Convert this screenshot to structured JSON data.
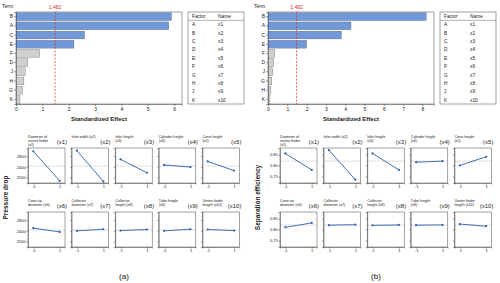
{
  "chart_data": [
    {
      "type": "bar",
      "orientation": "horizontal",
      "x_label": "Standardized Effect",
      "y_label": "Term",
      "categories": [
        "B",
        "A",
        "C",
        "E",
        "F",
        "D",
        "J",
        "H",
        "G",
        "K"
      ],
      "values": [
        5.9,
        5.8,
        2.6,
        2.2,
        0.9,
        0.45,
        0.35,
        0.3,
        0.25,
        0.15
      ],
      "colors": [
        "#7199da",
        "#7199da",
        "#7199da",
        "#7199da",
        "#cfcfcf",
        "#cfcfcf",
        "#cfcfcf",
        "#cfcfcf",
        "#cfcfcf",
        "#cfcfcf"
      ],
      "xlim": [
        0,
        6.3
      ],
      "xticks": [
        0,
        1,
        2,
        3,
        4,
        5,
        6
      ],
      "reference_line": 1.482,
      "factor_table": {
        "header": [
          "Factor",
          "Name"
        ],
        "rows": [
          [
            "A",
            "x1"
          ],
          [
            "B",
            "x2"
          ],
          [
            "C",
            "x3"
          ],
          [
            "D",
            "x4"
          ],
          [
            "E",
            "x5"
          ],
          [
            "F",
            "x6"
          ],
          [
            "G",
            "x7"
          ],
          [
            "H",
            "x8"
          ],
          [
            "J",
            "x9"
          ],
          [
            "K",
            "x10"
          ]
        ]
      }
    },
    {
      "type": "line",
      "y_label": "Pressure drop",
      "caption": "(a)",
      "color": "#2f5fae",
      "marker": "circle",
      "line_style": "solid",
      "xlim": [
        -1.4,
        1.4
      ],
      "xticks": [
        -1,
        1
      ],
      "ylim": [
        1800,
        3100
      ],
      "yticks": [
        2000,
        2400,
        2800
      ],
      "mean": 2430,
      "subplots": [
        {
          "title": "Diameter of vortex finder (x1)",
          "label": "(x1)",
          "x": [
            -1,
            1
          ],
          "values": [
            2980,
            1880
          ]
        },
        {
          "title": "Inlet width (x2)",
          "label": "(x2)",
          "x": [
            -1,
            1
          ],
          "values": [
            3000,
            1860
          ]
        },
        {
          "title": "Inlet height (x3)",
          "label": "(x3)",
          "x": [
            -1,
            1
          ],
          "values": [
            2680,
            2180
          ]
        },
        {
          "title": "Cylinder height (x4)",
          "label": "(x4)",
          "x": [
            -1,
            1
          ],
          "values": [
            2470,
            2390
          ]
        },
        {
          "title": "Cone height (x5)",
          "label": "(x5)",
          "x": [
            -1,
            1
          ],
          "values": [
            2600,
            2260
          ]
        },
        {
          "title": "Cone tip diameter (x6)",
          "label": "(x6)",
          "x": [
            -1,
            1
          ],
          "values": [
            2500,
            2360
          ]
        },
        {
          "title": "Collector diameter (x7)",
          "label": "(x7)",
          "x": [
            -1,
            1
          ],
          "values": [
            2400,
            2460
          ]
        },
        {
          "title": "Collector height (x8)",
          "label": "(x8)",
          "x": [
            -1,
            1
          ],
          "values": [
            2410,
            2450
          ]
        },
        {
          "title": "Tube height (x9)",
          "label": "(x9)",
          "x": [
            -1,
            1
          ],
          "values": [
            2400,
            2460
          ]
        },
        {
          "title": "Vortex finder length (x10)",
          "label": "(x10)",
          "x": [
            -1,
            1
          ],
          "values": [
            2450,
            2410
          ]
        }
      ]
    },
    {
      "type": "bar",
      "orientation": "horizontal",
      "x_label": "Standardized Effect",
      "y_label": "Term",
      "categories": [
        "B",
        "A",
        "C",
        "E",
        "F",
        "D",
        "J",
        "G",
        "H",
        "K"
      ],
      "values": [
        8.2,
        4.3,
        3.8,
        2.0,
        0.35,
        0.3,
        0.25,
        0.2,
        0.15,
        0.1
      ],
      "colors": [
        "#7199da",
        "#7199da",
        "#7199da",
        "#7199da",
        "#cfcfcf",
        "#cfcfcf",
        "#cfcfcf",
        "#cfcfcf",
        "#cfcfcf",
        "#cfcfcf"
      ],
      "xlim": [
        0,
        8.6
      ],
      "xticks": [
        0,
        1,
        2,
        3,
        4,
        5,
        6,
        7,
        8
      ],
      "reference_line": 1.482,
      "factor_table": {
        "header": [
          "Factor",
          "Name"
        ],
        "rows": [
          [
            "A",
            "x1"
          ],
          [
            "B",
            "x2"
          ],
          [
            "C",
            "x3"
          ],
          [
            "D",
            "x4"
          ],
          [
            "E",
            "x5"
          ],
          [
            "F",
            "x6"
          ],
          [
            "G",
            "x7"
          ],
          [
            "H",
            "x8"
          ],
          [
            "J",
            "x9"
          ],
          [
            "K",
            "x10"
          ]
        ]
      }
    },
    {
      "type": "line",
      "y_label": "Separation efficiency",
      "caption": "(b)",
      "color": "#2f5fae",
      "marker": "circle",
      "line_style": "solid",
      "xlim": [
        -1.4,
        1.4
      ],
      "xticks": [
        -1,
        1
      ],
      "ylim": [
        0.72,
        0.88
      ],
      "yticks": [
        0.75,
        {
          "value": 0.8,
          "label": "0.80"
        },
        0.85
      ],
      "mean": 0.82,
      "subplots": [
        {
          "title": "Diameter of vortex finder (x1)",
          "label": "(x1)",
          "x": [
            -1,
            1
          ],
          "values": [
            0.855,
            0.78
          ]
        },
        {
          "title": "Inlet width (x2)",
          "label": "(x2)",
          "x": [
            -1,
            1
          ],
          "values": [
            0.87,
            0.735
          ]
        },
        {
          "title": "Inlet height (x3)",
          "label": "(x3)",
          "x": [
            -1,
            1
          ],
          "values": [
            0.855,
            0.78
          ]
        },
        {
          "title": "Cylinder height (x4)",
          "label": "(x4)",
          "x": [
            -1,
            1
          ],
          "values": [
            0.815,
            0.82
          ]
        },
        {
          "title": "Cone height (x5)",
          "label": "(x5)",
          "x": [
            -1,
            1
          ],
          "values": [
            0.8,
            0.84
          ]
        },
        {
          "title": "Cone tip diameter (x6)",
          "label": "(x6)",
          "x": [
            -1,
            1
          ],
          "values": [
            0.81,
            0.83
          ]
        },
        {
          "title": "Collector diameter (x7)",
          "label": "(x7)",
          "x": [
            -1,
            1
          ],
          "values": [
            0.82,
            0.822
          ]
        },
        {
          "title": "Collector height (x8)",
          "label": "(x8)",
          "x": [
            -1,
            1
          ],
          "values": [
            0.819,
            0.821
          ]
        },
        {
          "title": "Tube height (x9)",
          "label": "(x9)",
          "x": [
            -1,
            1
          ],
          "values": [
            0.82,
            0.821
          ]
        },
        {
          "title": "Vortex finder length (x10)",
          "label": "(x10)",
          "x": [
            -1,
            1
          ],
          "values": [
            0.825,
            0.815
          ]
        }
      ]
    }
  ]
}
